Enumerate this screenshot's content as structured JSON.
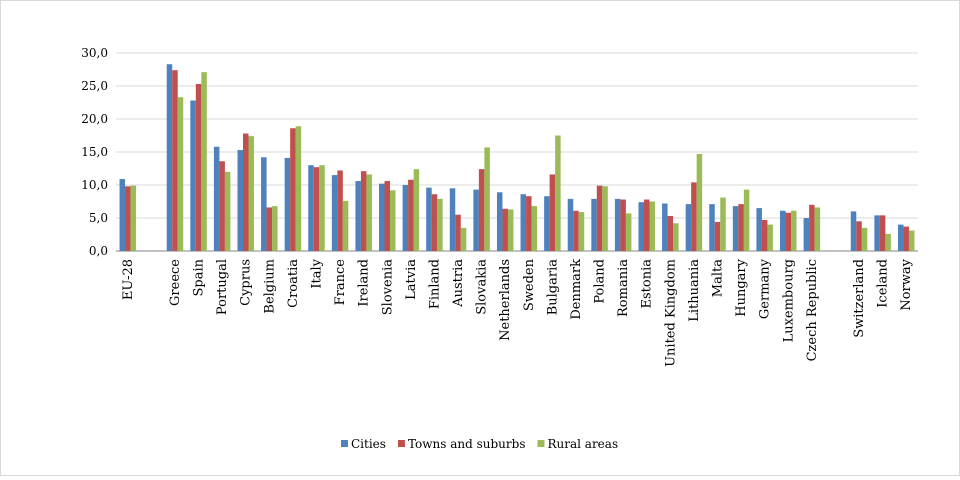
{
  "chart_data": {
    "type": "bar",
    "title": "",
    "xlabel": "",
    "ylabel": "",
    "ylim": [
      0,
      30
    ],
    "yticks": [
      "0,0",
      "5,0",
      "10,0",
      "15,0",
      "20,0",
      "25,0",
      "30,0"
    ],
    "grid": true,
    "legend_position": "bottom",
    "colors": {
      "Cities": "#4f81bd",
      "Towns and suburbs": "#c0504d",
      "Rural areas": "#9bbb59"
    },
    "categories": [
      "EU-28",
      "",
      "Greece",
      "Spain",
      "Portugal",
      "Cyprus",
      "Belgium",
      "Croatia",
      "Italy",
      "France",
      "Ireland",
      "Slovenia",
      "Latvia",
      "Finland",
      "Austria",
      "Slovakia",
      "Netherlands",
      "Sweden",
      "Bulgaria",
      "Denmark",
      "Poland",
      "Romania",
      "Estonia",
      "United Kingdom",
      "Lithuania",
      "Malta",
      "Hungary",
      "Germany",
      "Luxembourg",
      "Czech Republic",
      "",
      "Switzerland",
      "Iceland",
      "Norway"
    ],
    "series": [
      {
        "name": "Cities",
        "values": [
          10.9,
          null,
          28.3,
          22.8,
          15.8,
          15.3,
          14.2,
          14.1,
          13.0,
          11.5,
          10.6,
          10.2,
          10.0,
          9.6,
          9.5,
          9.3,
          8.9,
          8.6,
          8.3,
          7.9,
          7.9,
          7.9,
          7.4,
          7.2,
          7.1,
          7.1,
          6.8,
          6.5,
          6.1,
          5.0,
          null,
          6.0,
          5.4,
          4.0
        ]
      },
      {
        "name": "Towns and suburbs",
        "values": [
          9.8,
          null,
          27.4,
          25.3,
          13.6,
          17.8,
          6.6,
          18.6,
          12.7,
          12.2,
          12.1,
          10.6,
          10.8,
          8.6,
          5.5,
          12.4,
          6.4,
          8.3,
          11.6,
          6.1,
          9.9,
          7.8,
          7.8,
          5.3,
          10.4,
          4.4,
          7.1,
          4.7,
          5.8,
          7.0,
          null,
          4.5,
          5.4,
          3.7
        ]
      },
      {
        "name": "Rural areas",
        "values": [
          9.9,
          null,
          23.3,
          27.1,
          12.0,
          17.4,
          6.8,
          18.9,
          13.0,
          7.6,
          11.6,
          9.2,
          12.4,
          7.9,
          3.5,
          15.7,
          6.3,
          6.8,
          17.5,
          5.9,
          9.8,
          5.7,
          7.5,
          4.2,
          14.7,
          8.1,
          9.3,
          4.0,
          6.1,
          6.6,
          null,
          3.5,
          2.6,
          3.1
        ]
      }
    ]
  }
}
